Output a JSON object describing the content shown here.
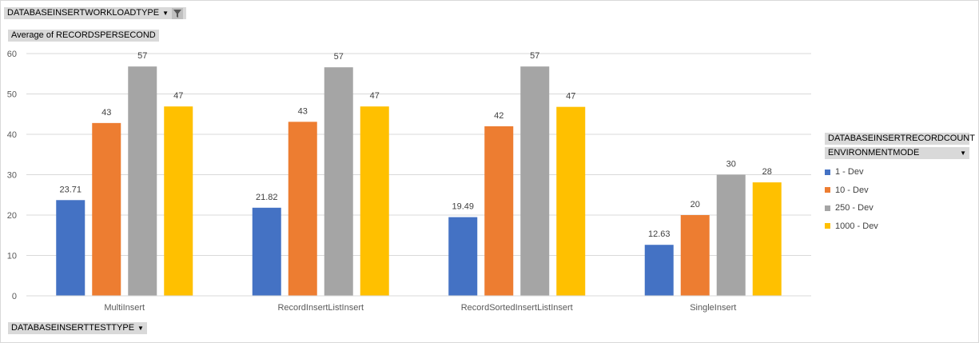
{
  "filter_field": {
    "label": "DATABASEINSERTWORKLOADTYPE",
    "icon": "filter-icon"
  },
  "value_field": {
    "label": "Average of RECORDSPERSECOND"
  },
  "axis_field": {
    "label": "DATABASEINSERTTESTTYPE"
  },
  "legend_fields": [
    {
      "label": "DATABASEINSERTRECORDCOUNT"
    },
    {
      "label": "ENVIRONMENTMODE"
    }
  ],
  "chart_data": {
    "type": "bar",
    "title": "",
    "xlabel": "",
    "ylabel": "",
    "ylim": [
      0,
      60
    ],
    "yticks": [
      0,
      10,
      20,
      30,
      40,
      50,
      60
    ],
    "grid": true,
    "legend_position": "right",
    "categories": [
      "MultiInsert",
      "RecordInsertListInsert",
      "RecordSortedInsertListInsert",
      "SingleInsert"
    ],
    "series": [
      {
        "name": "1 - Dev",
        "color": "#4472c4",
        "values": [
          23.71,
          21.82,
          19.49,
          12.63
        ],
        "labels": [
          "23.71",
          "21.82",
          "19.49",
          "12.63"
        ]
      },
      {
        "name": "10 - Dev",
        "color": "#ed7d31",
        "values": [
          42.8,
          43.1,
          42.0,
          20.0
        ],
        "labels": [
          "43",
          "43",
          "42",
          "20"
        ]
      },
      {
        "name": "250 - Dev",
        "color": "#a5a5a5",
        "values": [
          56.8,
          56.6,
          56.8,
          30.0
        ],
        "labels": [
          "57",
          "57",
          "57",
          "30"
        ]
      },
      {
        "name": "1000 - Dev",
        "color": "#ffc000",
        "values": [
          46.9,
          46.9,
          46.8,
          28.1
        ],
        "labels": [
          "47",
          "47",
          "47",
          "28"
        ]
      }
    ]
  }
}
